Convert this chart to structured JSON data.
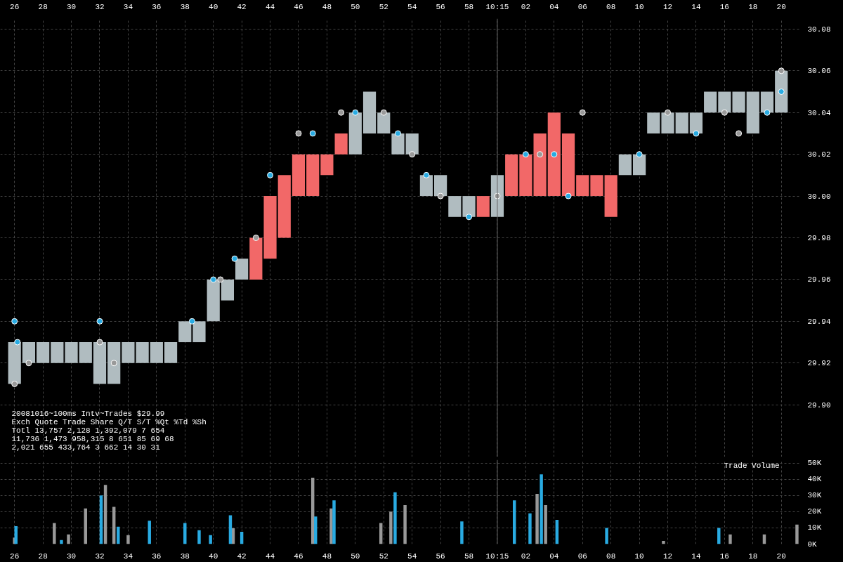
{
  "chart_data": [
    {
      "type": "bar",
      "title": "20081016~100ms Intv~Trades $29.99",
      "annotations": [
        "Exch  Quote Trade     Share  Q/T   S/T  %Qt %Td %Sh",
        "Totl 13,757 2,128 1,392,079    7   654",
        "     11,736 1,473   958,315    8   651  85  69  68",
        "      2,021   655   433,764    3   662  14  30  31"
      ],
      "xlim": [
        "2008-10-16T10:14:25",
        "2008-10-16T10:15:21.3"
      ],
      "xticks": [
        {
          "value": "2008-10-16T10:14:26",
          "label": "26"
        },
        {
          "value": "2008-10-16T10:14:28",
          "label": "28"
        },
        {
          "value": "2008-10-16T10:14:30",
          "label": "30"
        },
        {
          "value": "2008-10-16T10:14:32",
          "label": "32"
        },
        {
          "value": "2008-10-16T10:14:34",
          "label": "34"
        },
        {
          "value": "2008-10-16T10:14:36",
          "label": "36"
        },
        {
          "value": "2008-10-16T10:14:38",
          "label": "38"
        },
        {
          "value": "2008-10-16T10:14:40",
          "label": "40"
        },
        {
          "value": "2008-10-16T10:14:42",
          "label": "42"
        },
        {
          "value": "2008-10-16T10:14:44",
          "label": "44"
        },
        {
          "value": "2008-10-16T10:14:46",
          "label": "46"
        },
        {
          "value": "2008-10-16T10:14:48",
          "label": "48"
        },
        {
          "value": "2008-10-16T10:14:50",
          "label": "50"
        },
        {
          "value": "2008-10-16T10:14:52",
          "label": "52"
        },
        {
          "value": "2008-10-16T10:14:54",
          "label": "54"
        },
        {
          "value": "2008-10-16T10:14:56",
          "label": "56"
        },
        {
          "value": "2008-10-16T10:14:58",
          "label": "58"
        },
        {
          "value": "2008-10-16T10:15:00",
          "label": "10:15"
        },
        {
          "value": "2008-10-16T10:15:02",
          "label": "02"
        },
        {
          "value": "2008-10-16T10:15:04",
          "label": "04"
        },
        {
          "value": "2008-10-16T10:15:06",
          "label": "06"
        },
        {
          "value": "2008-10-16T10:15:08",
          "label": "08"
        },
        {
          "value": "2008-10-16T10:15:10",
          "label": "10"
        },
        {
          "value": "2008-10-16T10:15:12",
          "label": "12"
        },
        {
          "value": "2008-10-16T10:15:14",
          "label": "14"
        },
        {
          "value": "2008-10-16T10:15:16",
          "label": "16"
        },
        {
          "value": "2008-10-16T10:15:18",
          "label": "18"
        },
        {
          "value": "2008-10-16T10:15:20",
          "label": "20"
        }
      ],
      "ylim": [
        29.875,
        30.085
      ],
      "yticks": [
        {
          "value": 29.9,
          "label": "29.90"
        },
        29.92,
        29.94,
        29.96,
        29.98,
        {
          "value": 30.0,
          "label": "30.00"
        },
        30.02,
        30.04,
        30.06,
        30.08
      ],
      "grid": true,
      "ref_lines": [
        {
          "axis": "x",
          "value": "2008-10-16T10:15:00",
          "color": "#666666"
        }
      ],
      "series": [
        {
          "x": [
            "2008-10-16T10:14:26",
            "2008-10-16T10:14:27",
            "2008-10-16T10:14:28",
            "2008-10-16T10:14:29",
            "2008-10-16T10:14:30",
            "2008-10-16T10:14:31",
            "2008-10-16T10:14:32",
            "2008-10-16T10:14:33",
            "2008-10-16T10:14:34",
            "2008-10-16T10:14:35",
            "2008-10-16T10:14:36",
            "2008-10-16T10:14:37",
            "2008-10-16T10:14:38",
            "2008-10-16T10:14:39",
            "2008-10-16T10:14:40",
            "2008-10-16T10:14:41",
            "2008-10-16T10:14:42",
            "2008-10-16T10:14:43",
            "2008-10-16T10:14:44",
            "2008-10-16T10:14:45",
            "2008-10-16T10:14:46",
            "2008-10-16T10:14:47",
            "2008-10-16T10:14:48",
            "2008-10-16T10:14:49",
            "2008-10-16T10:14:50",
            "2008-10-16T10:14:51",
            "2008-10-16T10:14:52",
            "2008-10-16T10:14:53",
            "2008-10-16T10:14:54",
            "2008-10-16T10:14:55",
            "2008-10-16T10:14:56",
            "2008-10-16T10:14:57",
            "2008-10-16T10:14:58",
            "2008-10-16T10:14:59",
            "2008-10-16T10:15:00",
            "2008-10-16T10:15:01",
            "2008-10-16T10:15:02",
            "2008-10-16T10:15:03",
            "2008-10-16T10:15:04",
            "2008-10-16T10:15:05",
            "2008-10-16T10:15:06",
            "2008-10-16T10:15:07",
            "2008-10-16T10:15:08",
            "2008-10-16T10:15:09",
            "2008-10-16T10:15:10",
            "2008-10-16T10:15:11",
            "2008-10-16T10:15:12",
            "2008-10-16T10:15:13",
            "2008-10-16T10:15:14",
            "2008-10-16T10:15:15",
            "2008-10-16T10:15:16",
            "2008-10-16T10:15:17",
            "2008-10-16T10:15:18",
            "2008-10-16T10:15:19",
            "2008-10-16T10:15:20"
          ],
          "base": [
            29.91,
            29.92,
            29.92,
            29.92,
            29.92,
            29.92,
            29.91,
            29.91,
            29.92,
            29.92,
            29.92,
            29.92,
            29.93,
            29.93,
            29.94,
            29.95,
            29.96,
            29.96,
            29.97,
            29.98,
            30.0,
            30.0,
            30.01,
            30.02,
            30.02,
            30.03,
            30.03,
            30.02,
            30.02,
            30.0,
            30.0,
            29.99,
            29.99,
            29.99,
            29.99,
            30.0,
            30.0,
            30.0,
            30.0,
            30.0,
            30.0,
            30.0,
            29.99,
            30.01,
            30.01,
            30.03,
            30.03,
            30.03,
            30.03,
            30.04,
            30.04,
            30.04,
            30.03,
            30.04,
            30.04
          ],
          "values": [
            0.02,
            0.01,
            0.01,
            0.01,
            0.01,
            0.01,
            0.02,
            0.02,
            0.01,
            0.01,
            0.01,
            0.01,
            0.01,
            0.01,
            0.02,
            0.01,
            0.01,
            0.02,
            0.03,
            0.03,
            0.02,
            0.02,
            0.01,
            0.01,
            0.02,
            0.02,
            0.01,
            0.01,
            0.01,
            0.01,
            0.01,
            0.01,
            0.01,
            0.01,
            0.02,
            0.02,
            0.02,
            0.03,
            0.04,
            0.03,
            0.01,
            0.01,
            0.02,
            0.01,
            0.01,
            0.01,
            0.01,
            0.01,
            0.01,
            0.01,
            0.01,
            0.01,
            0.02,
            0.01,
            0.02
          ],
          "colors": [
            "#b0bcc0",
            "#b0bcc0",
            "#b0bcc0",
            "#b0bcc0",
            "#b0bcc0",
            "#b0bcc0",
            "#b0bcc0",
            "#b0bcc0",
            "#b0bcc0",
            "#b0bcc0",
            "#b0bcc0",
            "#b0bcc0",
            "#b0bcc0",
            "#b0bcc0",
            "#b0bcc0",
            "#b0bcc0",
            "#b0bcc0",
            "#f26868",
            "#f26868",
            "#f26868",
            "#f26868",
            "#f26868",
            "#f26868",
            "#f26868",
            "#b0bcc0",
            "#b0bcc0",
            "#b0bcc0",
            "#b0bcc0",
            "#b0bcc0",
            "#b0bcc0",
            "#b0bcc0",
            "#b0bcc0",
            "#b0bcc0",
            "#f26868",
            "#b0bcc0",
            "#f26868",
            "#f26868",
            "#f26868",
            "#f26868",
            "#f26868",
            "#f26868",
            "#f26868",
            "#f26868",
            "#b0bcc0",
            "#b0bcc0",
            "#b0bcc0",
            "#b0bcc0",
            "#b0bcc0",
            "#b0bcc0",
            "#b0bcc0",
            "#b0bcc0",
            "#b0bcc0",
            "#b0bcc0",
            "#b0bcc0",
            "#b0bcc0"
          ]
        },
        {
          "type": "scatter",
          "marker": "circle",
          "color": "#999999",
          "x": [
            "2008-10-16T10:14:26",
            "2008-10-16T10:14:27",
            "2008-10-16T10:14:32",
            "2008-10-16T10:14:33",
            "2008-10-16T10:14:40.5",
            "2008-10-16T10:14:43",
            "2008-10-16T10:14:46",
            "2008-10-16T10:14:49",
            "2008-10-16T10:14:52",
            "2008-10-16T10:14:54",
            "2008-10-16T10:14:56",
            "2008-10-16T10:15:00",
            "2008-10-16T10:15:03",
            "2008-10-16T10:15:06",
            "2008-10-16T10:15:12",
            "2008-10-16T10:15:16",
            "2008-10-16T10:15:17",
            "2008-10-16T10:15:20"
          ],
          "values": [
            29.91,
            29.92,
            29.93,
            29.92,
            29.96,
            29.98,
            30.03,
            30.04,
            30.04,
            30.02,
            30.0,
            30.0,
            30.02,
            30.04,
            30.04,
            30.04,
            30.03,
            30.06
          ]
        },
        {
          "type": "scatter",
          "marker": "circle",
          "color": "#29abe2",
          "x": [
            "2008-10-16T10:14:26",
            "2008-10-16T10:14:26.2",
            "2008-10-16T10:14:32",
            "2008-10-16T10:14:38.5",
            "2008-10-16T10:14:40",
            "2008-10-16T10:14:41.5",
            "2008-10-16T10:14:44",
            "2008-10-16T10:14:47",
            "2008-10-16T10:14:50",
            "2008-10-16T10:14:53",
            "2008-10-16T10:14:55",
            "2008-10-16T10:14:58",
            "2008-10-16T10:15:02",
            "2008-10-16T10:15:04",
            "2008-10-16T10:15:05",
            "2008-10-16T10:15:10",
            "2008-10-16T10:15:14",
            "2008-10-16T10:15:19",
            "2008-10-16T10:15:20"
          ],
          "values": [
            29.94,
            29.93,
            29.94,
            29.94,
            29.96,
            29.97,
            30.01,
            30.03,
            30.04,
            30.03,
            30.01,
            29.99,
            30.02,
            30.02,
            30.0,
            30.02,
            30.03,
            30.04,
            30.05
          ]
        }
      ]
    },
    {
      "type": "bar",
      "annotations": [
        "Trade Volume"
      ],
      "xlim": [
        "2008-10-16T10:14:25",
        "2008-10-16T10:15:21.3"
      ],
      "xticks": [
        {
          "value": "2008-10-16T10:14:26",
          "label": "26"
        },
        {
          "value": "2008-10-16T10:14:28",
          "label": "28"
        },
        {
          "value": "2008-10-16T10:14:30",
          "label": "30"
        },
        {
          "value": "2008-10-16T10:14:32",
          "label": "32"
        },
        {
          "value": "2008-10-16T10:14:34",
          "label": "34"
        },
        {
          "value": "2008-10-16T10:14:36",
          "label": "36"
        },
        {
          "value": "2008-10-16T10:14:38",
          "label": "38"
        },
        {
          "value": "2008-10-16T10:14:40",
          "label": "40"
        },
        {
          "value": "2008-10-16T10:14:42",
          "label": "42"
        },
        {
          "value": "2008-10-16T10:14:44",
          "label": "44"
        },
        {
          "value": "2008-10-16T10:14:46",
          "label": "46"
        },
        {
          "value": "2008-10-16T10:14:48",
          "label": "48"
        },
        {
          "value": "2008-10-16T10:14:50",
          "label": "50"
        },
        {
          "value": "2008-10-16T10:14:52",
          "label": "52"
        },
        {
          "value": "2008-10-16T10:14:54",
          "label": "54"
        },
        {
          "value": "2008-10-16T10:14:56",
          "label": "56"
        },
        {
          "value": "2008-10-16T10:14:58",
          "label": "58"
        },
        {
          "value": "2008-10-16T10:15:00",
          "label": "10:15"
        },
        {
          "value": "2008-10-16T10:15:02",
          "label": "02"
        },
        {
          "value": "2008-10-16T10:15:04",
          "label": "04"
        },
        {
          "value": "2008-10-16T10:15:06",
          "label": "06"
        },
        {
          "value": "2008-10-16T10:15:08",
          "label": "08"
        },
        {
          "value": "2008-10-16T10:15:10",
          "label": "10"
        },
        {
          "value": "2008-10-16T10:15:12",
          "label": "12"
        },
        {
          "value": "2008-10-16T10:15:14",
          "label": "14"
        },
        {
          "value": "2008-10-16T10:15:16",
          "label": "16"
        },
        {
          "value": "2008-10-16T10:15:18",
          "label": "18"
        },
        {
          "value": "2008-10-16T10:15:20",
          "label": "20"
        }
      ],
      "ylim": [
        0,
        52000
      ],
      "yticks": [
        {
          "value": 0,
          "label": "0K"
        },
        {
          "value": 10000,
          "label": "10K"
        },
        {
          "value": 20000,
          "label": "20K"
        },
        {
          "value": 30000,
          "label": "30K"
        },
        {
          "value": 40000,
          "label": "40K"
        },
        {
          "value": 50000,
          "label": "50K"
        }
      ],
      "grid": true,
      "ref_lines": [
        {
          "axis": "x",
          "value": "2008-10-16T10:15:00",
          "color": "#666666"
        }
      ],
      "series": [
        {
          "color": "#999999",
          "x": [
            "2008-10-16T10:14:26",
            "2008-10-16T10:14:28.8",
            "2008-10-16T10:14:29.8",
            "2008-10-16T10:14:31",
            "2008-10-16T10:14:32.4",
            "2008-10-16T10:14:33",
            "2008-10-16T10:14:34",
            "2008-10-16T10:14:41.4",
            "2008-10-16T10:14:47",
            "2008-10-16T10:14:48.3",
            "2008-10-16T10:14:51.8",
            "2008-10-16T10:14:52.5",
            "2008-10-16T10:14:53.5",
            "2008-10-16T10:15:02.8",
            "2008-10-16T10:15:03.4",
            "2008-10-16T10:15:11.7",
            "2008-10-16T10:15:16.4",
            "2008-10-16T10:15:18.8",
            "2008-10-16T10:15:21.1"
          ],
          "values": [
            4000,
            13000,
            6000,
            22000,
            36500,
            23000,
            5500,
            9700,
            41000,
            22000,
            13000,
            20000,
            24000,
            31000,
            24000,
            2000,
            6000,
            6000,
            12000
          ]
        },
        {
          "color": "#29abe2",
          "x": [
            "2008-10-16T10:14:26.1",
            "2008-10-16T10:14:29.3",
            "2008-10-16T10:14:32.1",
            "2008-10-16T10:14:33.3",
            "2008-10-16T10:14:35.5",
            "2008-10-16T10:14:38",
            "2008-10-16T10:14:39",
            "2008-10-16T10:14:39.8",
            "2008-10-16T10:14:41.2",
            "2008-10-16T10:14:42",
            "2008-10-16T10:14:47.2",
            "2008-10-16T10:14:48.5",
            "2008-10-16T10:14:52.8",
            "2008-10-16T10:14:57.5",
            "2008-10-16T10:15:01.2",
            "2008-10-16T10:15:02.3",
            "2008-10-16T10:15:03.1",
            "2008-10-16T10:15:04.2",
            "2008-10-16T10:15:07.7",
            "2008-10-16T10:15:15.6"
          ],
          "values": [
            11000,
            2500,
            30000,
            10700,
            14400,
            13000,
            8600,
            5500,
            17800,
            7600,
            17000,
            27000,
            32000,
            14000,
            27000,
            19000,
            43000,
            15000,
            10000,
            10000
          ]
        }
      ]
    }
  ]
}
